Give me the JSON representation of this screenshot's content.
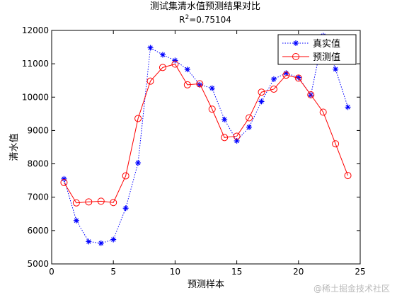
{
  "chart_data": {
    "type": "line",
    "title": "测试集清水值预测结果对比",
    "subtitle_prefix": "R",
    "subtitle_sup": "2",
    "subtitle_suffix": "=0.75104",
    "xlabel": "预测样本",
    "ylabel": "清水值",
    "xlim": [
      0,
      25
    ],
    "ylim": [
      5000,
      12000
    ],
    "x_ticks": [
      0,
      5,
      10,
      15,
      20,
      25
    ],
    "y_ticks": [
      5000,
      6000,
      7000,
      8000,
      9000,
      10000,
      11000,
      12000
    ],
    "grid": false,
    "legend_position": "top-right",
    "x": [
      1,
      2,
      3,
      4,
      5,
      6,
      7,
      8,
      9,
      10,
      11,
      12,
      13,
      14,
      15,
      16,
      17,
      18,
      19,
      20,
      21,
      22,
      23,
      24
    ],
    "series": [
      {
        "name": "真实值",
        "color": "#0000ff",
        "line_style": "dotted",
        "marker": "asterisk",
        "values": [
          7550,
          6300,
          5670,
          5620,
          5730,
          6670,
          8030,
          11480,
          11270,
          11100,
          10830,
          10370,
          10270,
          9330,
          8690,
          9100,
          9870,
          10540,
          10720,
          10590,
          10060,
          11840,
          10840,
          9700
        ]
      },
      {
        "name": "预测值",
        "color": "#ff0000",
        "line_style": "solid",
        "marker": "circle",
        "values": [
          7440,
          6830,
          6860,
          6880,
          6840,
          7640,
          9360,
          10480,
          10890,
          10990,
          10370,
          10400,
          9640,
          8790,
          8830,
          9380,
          10150,
          10240,
          10660,
          10570,
          10070,
          9550,
          8600,
          7650
        ]
      }
    ]
  },
  "watermark": "@稀土掘金技术社区"
}
